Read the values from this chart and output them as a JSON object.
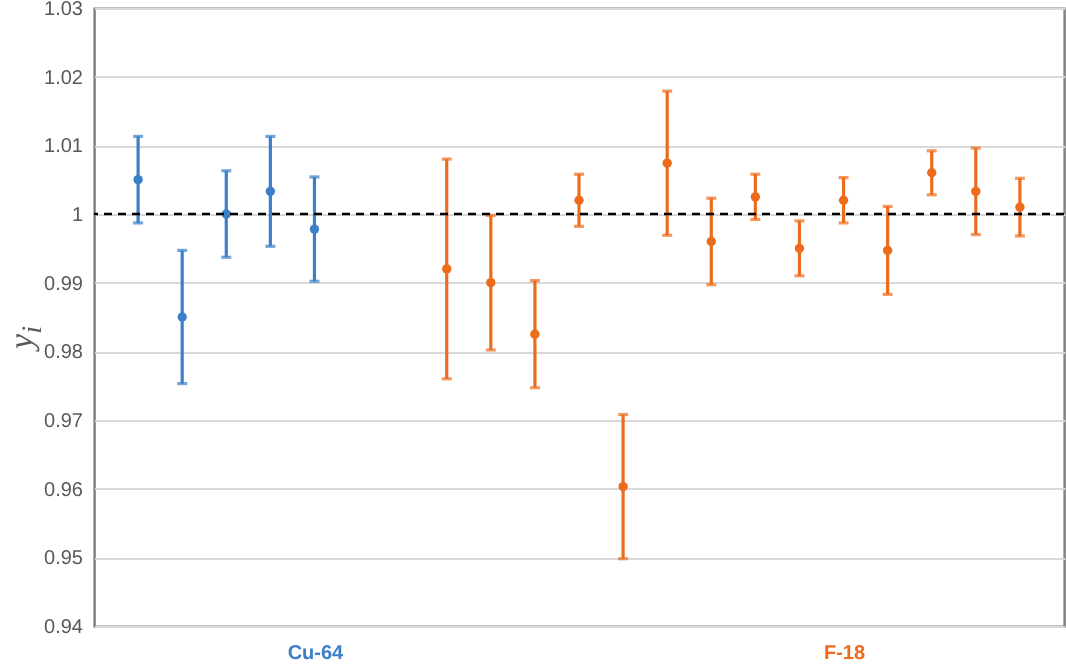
{
  "chart_data": {
    "type": "scatter",
    "ylabel": "y$_{i}$",
    "categories": [
      null,
      null,
      null,
      null,
      null,
      "Cu-64",
      null,
      null,
      null,
      null,
      null,
      null,
      null,
      null,
      null,
      null,
      null,
      "F-18",
      null,
      null,
      null,
      null,
      null
    ],
    "ylim": [
      0.94,
      1.03
    ],
    "yticks": [
      0.94,
      0.95,
      0.96,
      0.97,
      0.98,
      0.99,
      1,
      1.01,
      1.02,
      1.03
    ],
    "grid": "y",
    "marker": "circle",
    "series": [
      {
        "color": "#3a7fc8",
        "values": [
          null,
          1.005,
          0.985,
          1.0,
          1.0033,
          0.9978,
          null,
          null,
          null,
          null,
          null,
          null,
          null,
          null,
          null,
          null,
          null,
          null,
          null,
          null,
          null,
          null,
          null
        ],
        "errors": [
          null,
          0.0063,
          0.0097,
          0.0063,
          0.008,
          0.0076,
          null,
          null,
          null,
          null,
          null,
          null,
          null,
          null,
          null,
          null,
          null,
          null,
          null,
          null,
          null,
          null,
          null
        ]
      },
      {
        "color": "#ed6c1c",
        "values": [
          null,
          null,
          null,
          null,
          null,
          null,
          null,
          null,
          0.992,
          0.99,
          0.9825,
          1.002,
          0.9603,
          1.0074,
          0.996,
          1.0025,
          0.995,
          1.002,
          0.9947,
          1.006,
          1.0033,
          1.001,
          null
        ],
        "errors": [
          null,
          null,
          null,
          null,
          null,
          null,
          null,
          null,
          0.016,
          0.0098,
          0.0078,
          0.0038,
          0.0105,
          0.0105,
          0.0063,
          0.0033,
          0.004,
          0.0033,
          0.0064,
          0.0032,
          0.0063,
          0.0042,
          null
        ]
      }
    ],
    "ref_lines": [
      {
        "axis": "y",
        "value": 1,
        "color": "#000000",
        "line_style": "dashed"
      }
    ]
  }
}
